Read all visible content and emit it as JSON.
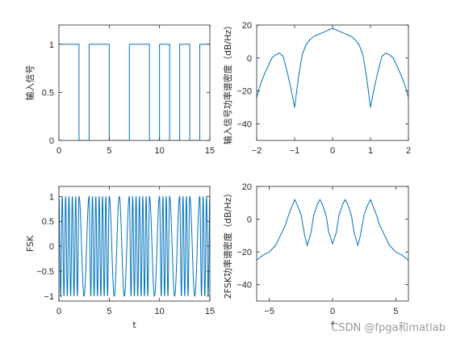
{
  "line_color": "#0072bd",
  "axis_color": "#262626",
  "watermark": "CSDN @fpga和matlab",
  "chart_data": [
    {
      "type": "line",
      "xlabel": "",
      "ylabel": "输入信号",
      "xlim": [
        0,
        15
      ],
      "ylim": [
        0,
        1.2
      ],
      "xticks": [
        0,
        5,
        10,
        15
      ],
      "yticks": [
        0,
        0.5,
        1
      ],
      "ytick_labels": [
        "0",
        "0.5",
        "1"
      ],
      "series": [
        {
          "x": [
            0,
            2,
            2,
            3,
            3,
            5,
            5,
            7,
            7,
            9,
            9,
            10,
            10,
            11,
            11,
            12,
            12,
            13,
            13,
            14,
            14,
            15
          ],
          "y": [
            1,
            1,
            0,
            0,
            1,
            1,
            0,
            0,
            1,
            1,
            0,
            0,
            1,
            1,
            0,
            0,
            1,
            1,
            0,
            0,
            1,
            1
          ]
        }
      ]
    },
    {
      "type": "line",
      "xlabel": "",
      "ylabel": "输入信号功率谱密度（dB/Hz）",
      "xlim": [
        -2,
        2
      ],
      "ylim": [
        -50,
        20
      ],
      "xticks": [
        -2,
        -1,
        0,
        1,
        2
      ],
      "yticks": [
        -40,
        -20,
        0,
        20
      ],
      "series": [
        {
          "x": [
            -2.0,
            -1.9,
            -1.8,
            -1.7,
            -1.6,
            -1.5,
            -1.4,
            -1.3,
            -1.2,
            -1.1,
            -1.0,
            -0.9,
            -0.8,
            -0.7,
            -0.6,
            -0.5,
            -0.4,
            -0.3,
            -0.2,
            -0.1,
            0.0,
            0.1,
            0.2,
            0.3,
            0.4,
            0.5,
            0.6,
            0.7,
            0.8,
            0.9,
            1.0,
            1.1,
            1.2,
            1.3,
            1.4,
            1.5,
            1.6,
            1.7,
            1.8,
            1.9,
            2.0
          ],
          "y": [
            -24,
            -16,
            -10,
            -5,
            0,
            2,
            3,
            1,
            -8,
            -18,
            -30,
            -12,
            2,
            8,
            11,
            13,
            14,
            15,
            16,
            17,
            18,
            17,
            16,
            15,
            14,
            13,
            11,
            8,
            2,
            -12,
            -30,
            -18,
            -8,
            1,
            3,
            2,
            0,
            -5,
            -10,
            -16,
            -24
          ]
        }
      ]
    },
    {
      "type": "line",
      "xlabel": "t",
      "ylabel": "FSK",
      "xlim": [
        0,
        15
      ],
      "ylim": [
        -1.1,
        1.2
      ],
      "xticks": [
        0,
        5,
        10,
        15
      ],
      "yticks": [
        -1,
        -0.5,
        0,
        0.5,
        1
      ],
      "ytick_labels": [
        "-1",
        "-0.5",
        "0",
        "0.5",
        "1"
      ],
      "bit_period": 1,
      "freq_when_one": 3,
      "freq_when_zero": 1,
      "amplitude": 1
    },
    {
      "type": "line",
      "xlabel": "f",
      "ylabel": "2FSK功率谱密度（dB/Hz）",
      "xlim": [
        -6,
        6
      ],
      "ylim": [
        -50,
        20
      ],
      "xticks": [
        -5,
        0,
        5
      ],
      "yticks": [
        -40,
        -20,
        0,
        20
      ],
      "series": [
        {
          "x": [
            -6.0,
            -5.5,
            -5.0,
            -4.5,
            -4.0,
            -3.7,
            -3.5,
            -3.2,
            -3.0,
            -2.8,
            -2.5,
            -2.2,
            -2.0,
            -1.7,
            -1.5,
            -1.2,
            -1.0,
            -0.8,
            -0.5,
            -0.3,
            0.0,
            0.3,
            0.5,
            0.8,
            1.0,
            1.2,
            1.5,
            1.7,
            2.0,
            2.2,
            2.5,
            2.8,
            3.0,
            3.2,
            3.5,
            3.7,
            4.0,
            4.5,
            5.0,
            5.5,
            6.0
          ],
          "y": [
            -25,
            -22,
            -20,
            -16,
            -8,
            -3,
            2,
            8,
            12,
            9,
            3,
            -10,
            -16,
            -8,
            2,
            9,
            12,
            9,
            2,
            -8,
            -15,
            -8,
            2,
            9,
            12,
            9,
            2,
            -8,
            -16,
            -10,
            3,
            9,
            12,
            8,
            2,
            -3,
            -8,
            -16,
            -20,
            -22,
            -25
          ]
        }
      ]
    }
  ]
}
